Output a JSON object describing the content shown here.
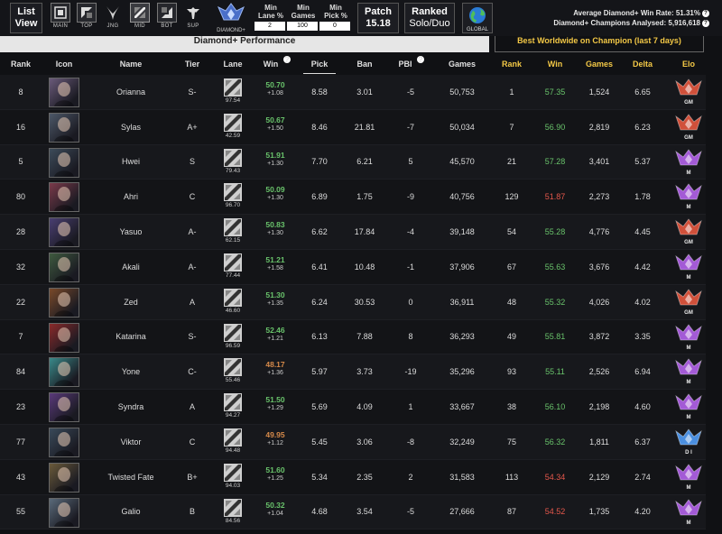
{
  "topbar": {
    "list_view_label_1": "List",
    "list_view_label_2": "View",
    "roles": [
      {
        "label": "MAIN",
        "icon": "main-role-icon"
      },
      {
        "label": "TOP",
        "icon": "top-role-icon"
      },
      {
        "label": "JNG",
        "icon": "jungle-role-icon"
      },
      {
        "label": "MID",
        "icon": "mid-role-icon",
        "active": true
      },
      {
        "label": "BOT",
        "icon": "bot-role-icon"
      },
      {
        "label": "SUP",
        "icon": "support-role-icon"
      }
    ],
    "rank_filter_label": "DIAMOND+",
    "min_lane_label_1": "Min",
    "min_lane_label_2": "Lane %",
    "min_lane_value": "2",
    "min_games_label_1": "Min",
    "min_games_label_2": "Games",
    "min_games_value": "100",
    "min_pick_label_1": "Min",
    "min_pick_label_2": "Pick %",
    "min_pick_value": "0",
    "patch_label": "Patch",
    "patch_value": "15.18",
    "queue_label": "Ranked",
    "queue_value": "Solo/Duo",
    "region_label": "GLOBAL",
    "avg_win_label": "Average Diamond+ Win Rate: 51.31%",
    "champs_analysed_label": "Diamond+ Champions Analysed: 5,916,618"
  },
  "sections": {
    "left_title": "Diamond+ Performance",
    "right_title": "Best Worldwide on Champion (last 7 days)"
  },
  "headers": {
    "rank": "Rank",
    "icon": "Icon",
    "name": "Name",
    "tier": "Tier",
    "lane": "Lane",
    "win": "Win",
    "pick": "Pick",
    "ban": "Ban",
    "pbi": "PBI",
    "games": "Games",
    "best_rank": "Rank",
    "best_win": "Win",
    "best_games": "Games",
    "delta": "Delta",
    "elo": "Elo"
  },
  "colors": {
    "win_green": "#69c36b",
    "win_red": "#e5574b",
    "win_orange": "#d68a4a",
    "gold_header": "#f3c846",
    "gm_badge": "#d0503a",
    "master_badge": "#a35ad6",
    "diamond_badge": "#4b8fe0"
  },
  "rows": [
    {
      "rank": "8",
      "name": "Orianna",
      "tier": "S-",
      "lane": "97.54",
      "win": "50.70",
      "win_delta": "+1.08",
      "win_color": "green",
      "pick": "8.58",
      "ban": "3.01",
      "pbi": "-5",
      "games": "50,753",
      "best_rank": "1",
      "best_win": "57.35",
      "best_win_color": "green",
      "best_games": "1,524",
      "delta": "6.65",
      "elo": "GM",
      "portrait": "#6a5a7a"
    },
    {
      "rank": "16",
      "name": "Sylas",
      "tier": "A+",
      "lane": "42.59",
      "win": "50.67",
      "win_delta": "+1.50",
      "win_color": "green",
      "pick": "8.46",
      "ban": "21.81",
      "pbi": "-7",
      "games": "50,034",
      "best_rank": "7",
      "best_win": "56.90",
      "best_win_color": "green",
      "best_games": "2,819",
      "delta": "6.23",
      "elo": "GM",
      "portrait": "#4d5868"
    },
    {
      "rank": "5",
      "name": "Hwei",
      "tier": "S",
      "lane": "79.43",
      "win": "51.91",
      "win_delta": "+1.30",
      "win_color": "green",
      "pick": "7.70",
      "ban": "6.21",
      "pbi": "5",
      "games": "45,570",
      "best_rank": "21",
      "best_win": "57.28",
      "best_win_color": "green",
      "best_games": "3,401",
      "delta": "5.37",
      "elo": "M",
      "portrait": "#3d4c5a"
    },
    {
      "rank": "80",
      "name": "Ahri",
      "tier": "C",
      "lane": "96.70",
      "win": "50.09",
      "win_delta": "+1.30",
      "win_color": "green",
      "pick": "6.89",
      "ban": "1.75",
      "pbi": "-9",
      "games": "40,756",
      "best_rank": "129",
      "best_win": "51.87",
      "best_win_color": "red",
      "best_games": "2,273",
      "delta": "1.78",
      "elo": "M",
      "portrait": "#7a3a4a"
    },
    {
      "rank": "28",
      "name": "Yasuo",
      "tier": "A-",
      "lane": "62.15",
      "win": "50.83",
      "win_delta": "+1.30",
      "win_color": "green",
      "pick": "6.62",
      "ban": "17.84",
      "pbi": "-4",
      "games": "39,148",
      "best_rank": "54",
      "best_win": "55.28",
      "best_win_color": "green",
      "best_games": "4,776",
      "delta": "4.45",
      "elo": "GM",
      "portrait": "#4a3f72"
    },
    {
      "rank": "32",
      "name": "Akali",
      "tier": "A-",
      "lane": "77.44",
      "win": "51.21",
      "win_delta": "+1.58",
      "win_color": "green",
      "pick": "6.41",
      "ban": "10.48",
      "pbi": "-1",
      "games": "37,906",
      "best_rank": "67",
      "best_win": "55.63",
      "best_win_color": "green",
      "best_games": "3,676",
      "delta": "4.42",
      "elo": "M",
      "portrait": "#3f5a3f"
    },
    {
      "rank": "22",
      "name": "Zed",
      "tier": "A",
      "lane": "46.60",
      "win": "51.30",
      "win_delta": "+1.35",
      "win_color": "green",
      "pick": "6.24",
      "ban": "30.53",
      "pbi": "0",
      "games": "36,911",
      "best_rank": "48",
      "best_win": "55.32",
      "best_win_color": "green",
      "best_games": "4,026",
      "delta": "4.02",
      "elo": "GM",
      "portrait": "#7a4a2a"
    },
    {
      "rank": "7",
      "name": "Katarina",
      "tier": "S-",
      "lane": "96.59",
      "win": "52.46",
      "win_delta": "+1.21",
      "win_color": "green",
      "pick": "6.13",
      "ban": "7.88",
      "pbi": "8",
      "games": "36,293",
      "best_rank": "49",
      "best_win": "55.81",
      "best_win_color": "green",
      "best_games": "3,872",
      "delta": "3.35",
      "elo": "M",
      "portrait": "#8a2a2a"
    },
    {
      "rank": "84",
      "name": "Yone",
      "tier": "C-",
      "lane": "55.46",
      "win": "48.17",
      "win_delta": "+1.36",
      "win_color": "orange",
      "pick": "5.97",
      "ban": "3.73",
      "pbi": "-19",
      "games": "35,296",
      "best_rank": "93",
      "best_win": "55.11",
      "best_win_color": "green",
      "best_games": "2,526",
      "delta": "6.94",
      "elo": "M",
      "portrait": "#3a8a8a"
    },
    {
      "rank": "23",
      "name": "Syndra",
      "tier": "A",
      "lane": "94.27",
      "win": "51.50",
      "win_delta": "+1.29",
      "win_color": "green",
      "pick": "5.69",
      "ban": "4.09",
      "pbi": "1",
      "games": "33,667",
      "best_rank": "38",
      "best_win": "56.10",
      "best_win_color": "green",
      "best_games": "2,198",
      "delta": "4.60",
      "elo": "M",
      "portrait": "#5a3a7a"
    },
    {
      "rank": "77",
      "name": "Viktor",
      "tier": "C",
      "lane": "94.48",
      "win": "49.95",
      "win_delta": "+1.12",
      "win_color": "orange",
      "pick": "5.45",
      "ban": "3.06",
      "pbi": "-8",
      "games": "32,249",
      "best_rank": "75",
      "best_win": "56.32",
      "best_win_color": "green",
      "best_games": "1,811",
      "delta": "6.37",
      "elo": "D I",
      "portrait": "#3a4a5a"
    },
    {
      "rank": "43",
      "name": "Twisted Fate",
      "tier": "B+",
      "lane": "94.03",
      "win": "51.60",
      "win_delta": "+1.25",
      "win_color": "green",
      "pick": "5.34",
      "ban": "2.35",
      "pbi": "2",
      "games": "31,583",
      "best_rank": "113",
      "best_win": "54.34",
      "best_win_color": "red",
      "best_games": "2,129",
      "delta": "2.74",
      "elo": "M",
      "portrait": "#6a5a3a"
    },
    {
      "rank": "55",
      "name": "Galio",
      "tier": "B",
      "lane": "84.56",
      "win": "50.32",
      "win_delta": "+1.04",
      "win_color": "green",
      "pick": "4.68",
      "ban": "3.54",
      "pbi": "-5",
      "games": "27,666",
      "best_rank": "87",
      "best_win": "54.52",
      "best_win_color": "red",
      "best_games": "1,735",
      "delta": "4.20",
      "elo": "M",
      "portrait": "#5a6a7a"
    }
  ]
}
